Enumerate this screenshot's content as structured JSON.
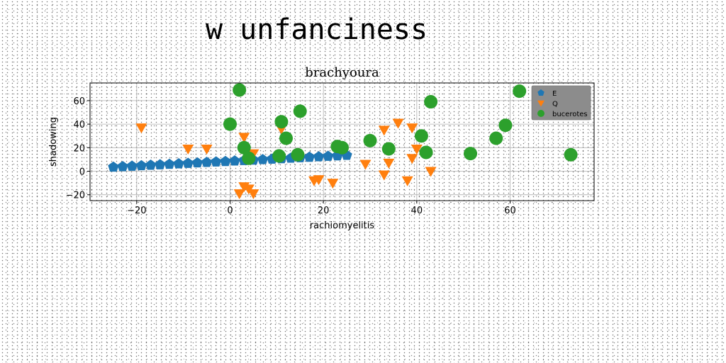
{
  "figure_title": "w unfanciness",
  "chart_data": {
    "type": "scatter",
    "title": "brachyoura",
    "xlabel": "rachiomyelitis",
    "ylabel": "shadowing",
    "xlim": [
      -30,
      78
    ],
    "ylim": [
      -25,
      75
    ],
    "xticks": [
      -20,
      0,
      20,
      40,
      60
    ],
    "yticks": [
      -20,
      0,
      20,
      40,
      60
    ],
    "grid": true,
    "legend": "top-right",
    "series": [
      {
        "name": "E",
        "color": "#1f77b4",
        "marker": "pentagon",
        "x": [
          -25,
          -23,
          -21,
          -19,
          -17,
          -15,
          -13,
          -11,
          -9,
          -7,
          -5,
          -3,
          -1,
          1,
          3,
          5,
          7,
          9,
          11,
          13,
          15,
          17,
          19,
          21,
          23,
          25
        ],
        "y": [
          3.5,
          3.9,
          4.3,
          4.7,
          5.1,
          5.5,
          5.9,
          6.3,
          6.7,
          7.1,
          7.5,
          7.9,
          8.3,
          8.7,
          9.1,
          9.5,
          9.9,
          10.3,
          10.7,
          11.1,
          11.5,
          11.9,
          12.3,
          12.7,
          13.1,
          13.5
        ]
      },
      {
        "name": "Q",
        "color": "#ff7f0e",
        "marker": "triangle-down",
        "x": [
          -19,
          -9,
          -5,
          3,
          5,
          2,
          3,
          4,
          5,
          11,
          18,
          19,
          22,
          29,
          33,
          33,
          34,
          36,
          38,
          39,
          39,
          40,
          43
        ],
        "y": [
          37,
          19,
          19,
          29,
          15,
          -19,
          -13,
          -15,
          -19,
          36,
          -8,
          -7,
          -10,
          6,
          35,
          -3,
          7,
          41,
          -8,
          37,
          11,
          19,
          0
        ]
      },
      {
        "name": "bucerotes",
        "color": "#2ca02c",
        "marker": "circle",
        "x": [
          2,
          0,
          3,
          4,
          11,
          12,
          15,
          10.5,
          14.5,
          23,
          24,
          30,
          34,
          41,
          42,
          43,
          51.5,
          57,
          59,
          62,
          73
        ],
        "y": [
          69,
          40,
          20,
          11,
          42,
          28,
          51,
          13,
          14,
          21,
          20,
          26,
          19,
          30,
          16,
          59,
          15,
          28,
          39,
          68,
          14
        ]
      }
    ]
  }
}
